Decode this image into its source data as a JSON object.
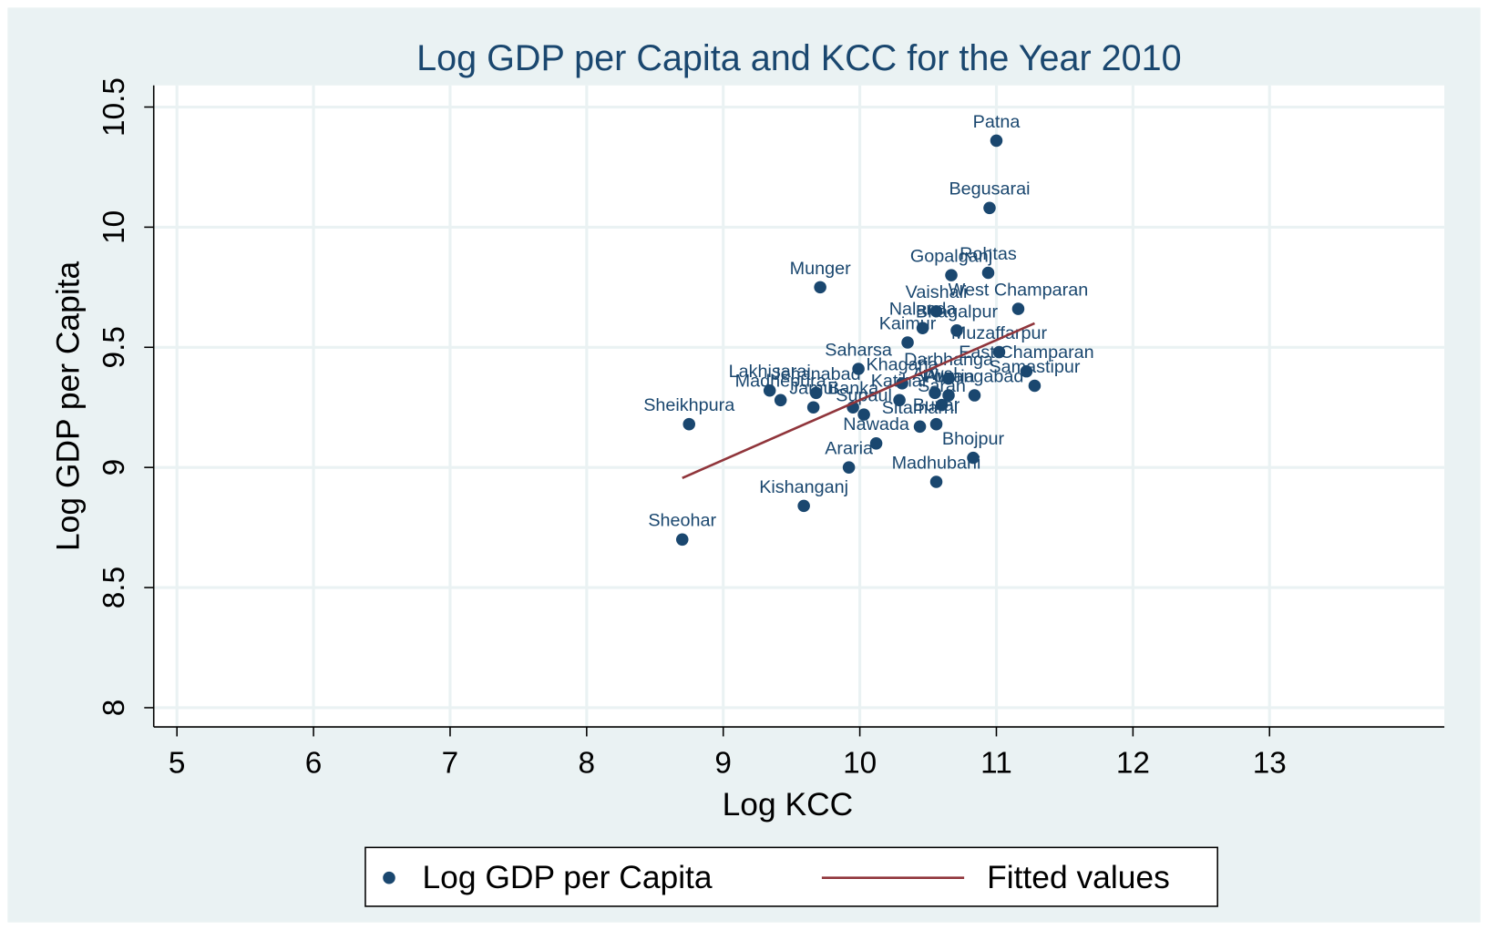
{
  "chart_data": {
    "type": "scatter",
    "title": "Log GDP per Capita and KCC for the Year 2010",
    "x_label": "Log KCC",
    "y_label": "Log GDP per Capita",
    "xlim": [
      4.83,
      14.28
    ],
    "ylim": [
      7.92,
      10.59
    ],
    "xticks": [
      5,
      6,
      7,
      8,
      9,
      10,
      11,
      12,
      13
    ],
    "yticks": [
      8,
      8.5,
      9,
      9.5,
      10,
      10.5
    ],
    "grid": true,
    "legend": "bottom",
    "series": [
      {
        "name": "Log GDP per Capita",
        "color": "#1a476f",
        "point_labels": [
          "Patna",
          "Begusarai",
          "Munger",
          "Gopalganj",
          "Rohtas",
          "West Champaran",
          "Vaishali",
          "Nalanda",
          "Bhagalpur",
          "Kaimur",
          "Muzaffarpur",
          "Saharsa",
          "East Champaran",
          "Samastipur",
          "Darbhanga",
          "Khagaria",
          "Lakhisarai",
          "Madhepura",
          "Jehanabad",
          "Jamui",
          "Banka",
          "Supaul",
          "Katihar",
          "Arwal",
          "Aurangabad",
          "Purnia",
          "Saran",
          "Sitamarhi",
          "Buxar",
          "Nawada",
          "Araria",
          "Bhojpur",
          "Madhubani",
          "Kishanganj",
          "Sheohar",
          "Sheikhpura"
        ],
        "x": [
          11.0,
          10.95,
          9.71,
          10.67,
          10.94,
          11.16,
          10.56,
          10.46,
          10.71,
          10.35,
          11.02,
          9.99,
          11.22,
          11.28,
          10.65,
          10.31,
          9.34,
          9.42,
          9.68,
          9.66,
          9.95,
          10.03,
          10.29,
          10.55,
          10.84,
          10.65,
          10.6,
          10.44,
          10.56,
          10.12,
          9.92,
          10.83,
          10.56,
          9.59,
          8.7,
          8.75
        ],
        "values": [
          10.36,
          10.08,
          9.75,
          9.8,
          9.81,
          9.66,
          9.65,
          9.58,
          9.57,
          9.52,
          9.48,
          9.41,
          9.4,
          9.34,
          9.37,
          9.35,
          9.32,
          9.28,
          9.31,
          9.25,
          9.25,
          9.22,
          9.28,
          9.31,
          9.3,
          9.3,
          9.26,
          9.17,
          9.18,
          9.1,
          9.0,
          9.04,
          8.94,
          8.84,
          8.7,
          9.18
        ]
      },
      {
        "name": "Fitted values",
        "type": "line",
        "color": "#90353b",
        "x": [
          8.7,
          11.28
        ],
        "values": [
          8.956,
          9.6
        ]
      }
    ]
  }
}
